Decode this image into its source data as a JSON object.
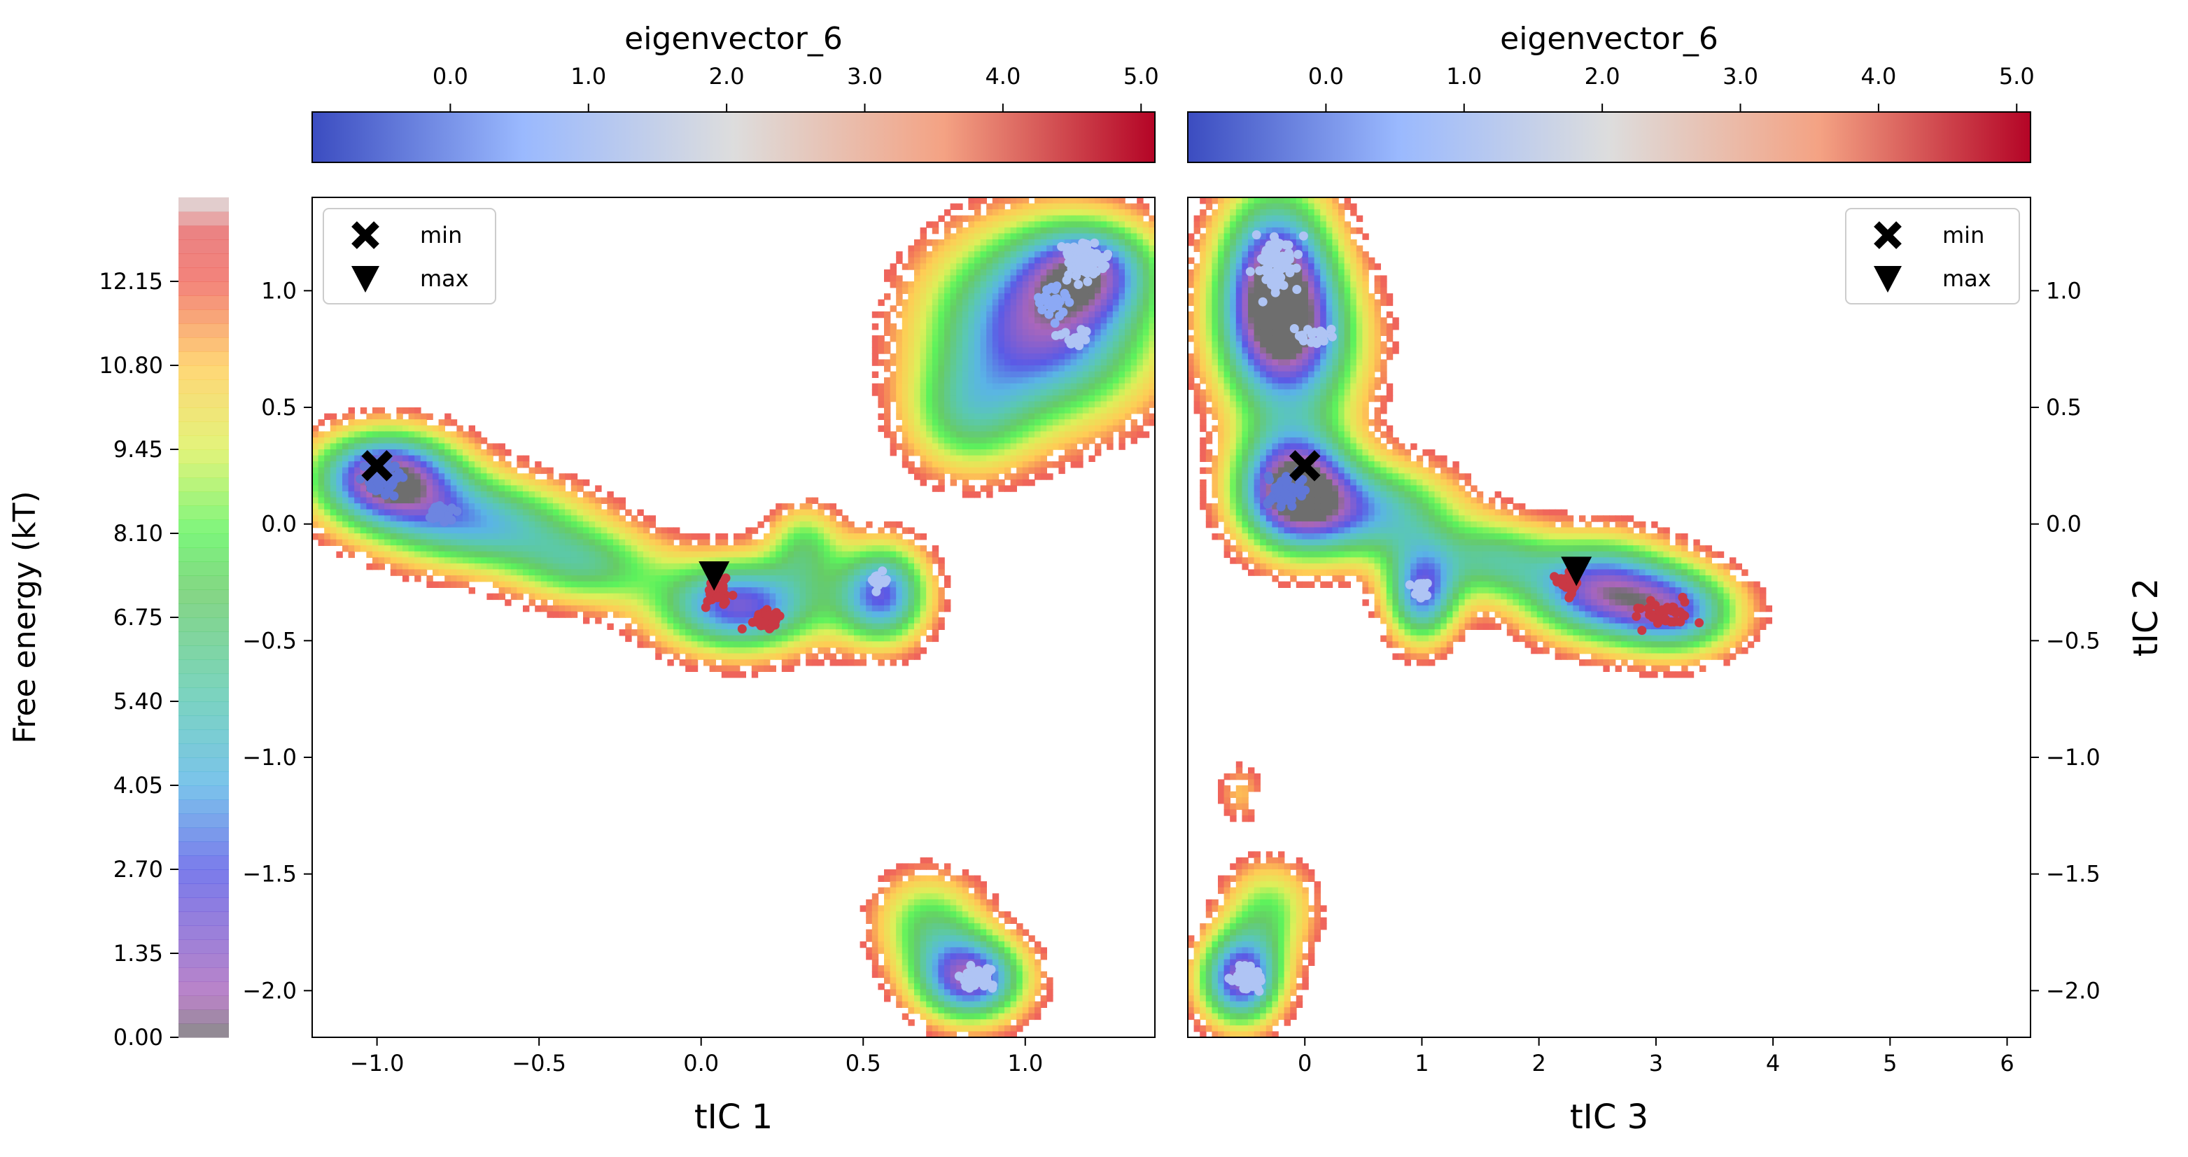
{
  "chart_data": {
    "type": "heatmap",
    "free_energy_colorbar": {
      "label": "Free energy (kT)",
      "ticks": [
        "0.00",
        "1.35",
        "2.70",
        "4.05",
        "5.40",
        "6.75",
        "8.10",
        "9.45",
        "10.80",
        "12.15"
      ],
      "range": [
        0.0,
        13.5
      ]
    },
    "eigen_colorbar": {
      "label": "eigenvector_6",
      "ticks": [
        "0.0",
        "1.0",
        "2.0",
        "3.0",
        "4.0",
        "5.0"
      ],
      "colors": [
        "#3b4cc0",
        "#dddddd",
        "#b40426"
      ]
    },
    "panels": [
      {
        "xlabel": "tIC 1",
        "ylabel": "",
        "xlim": [
          -1.2,
          1.4
        ],
        "ylim": [
          -2.2,
          1.4
        ],
        "xticks": [
          "-1.0",
          "-0.5",
          "0.0",
          "0.5",
          "1.0"
        ],
        "yticks": [
          "1.0",
          "0.5",
          "0.0",
          "-0.5",
          "-1.0",
          "-1.5",
          "-2.0"
        ],
        "legend": {
          "position": "top-left",
          "entries": [
            "min",
            "max"
          ]
        },
        "min_marker": {
          "x": -1.0,
          "y": 0.25
        },
        "max_marker": {
          "x": 0.04,
          "y": -0.22
        },
        "wells": [
          {
            "x": -0.97,
            "y": 0.2,
            "sx": 0.16,
            "sy": 0.14,
            "depth": 13.5
          },
          {
            "x": -0.68,
            "y": 0.0,
            "sx": 0.22,
            "sy": 0.14,
            "depth": 8.5
          },
          {
            "x": -0.35,
            "y": -0.18,
            "sx": 0.16,
            "sy": 0.12,
            "depth": 6.0
          },
          {
            "x": 0.12,
            "y": -0.35,
            "sx": 0.18,
            "sy": 0.14,
            "depth": 11.5
          },
          {
            "x": 0.32,
            "y": -0.08,
            "sx": 0.08,
            "sy": 0.12,
            "depth": 5.0
          },
          {
            "x": 0.56,
            "y": -0.3,
            "sx": 0.1,
            "sy": 0.15,
            "depth": 10.5
          },
          {
            "x": 0.82,
            "y": 0.45,
            "sx": 0.14,
            "sy": 0.18,
            "depth": 5.0
          },
          {
            "x": 1.05,
            "y": 0.85,
            "sx": 0.24,
            "sy": 0.28,
            "depth": 12.0
          },
          {
            "x": 1.2,
            "y": 1.1,
            "sx": 0.14,
            "sy": 0.14,
            "depth": 7.0
          },
          {
            "x": 0.7,
            "y": -1.7,
            "sx": 0.12,
            "sy": 0.15,
            "depth": 5.5
          },
          {
            "x": 0.83,
            "y": -1.95,
            "sx": 0.12,
            "sy": 0.13,
            "depth": 12.0
          }
        ],
        "clusters": [
          {
            "x": -0.98,
            "y": 0.2,
            "sx": 0.05,
            "sy": 0.07,
            "n": 60,
            "value": -0.4
          },
          {
            "x": -0.8,
            "y": 0.05,
            "sx": 0.04,
            "sy": 0.03,
            "n": 25,
            "value": -0.2
          },
          {
            "x": 0.05,
            "y": -0.3,
            "sx": 0.04,
            "sy": 0.05,
            "n": 40,
            "value": 4.6
          },
          {
            "x": 0.2,
            "y": -0.42,
            "sx": 0.04,
            "sy": 0.03,
            "n": 35,
            "value": 4.6
          },
          {
            "x": 0.55,
            "y": -0.25,
            "sx": 0.03,
            "sy": 0.04,
            "n": 20,
            "value": 1.0
          },
          {
            "x": 1.18,
            "y": 1.12,
            "sx": 0.06,
            "sy": 0.07,
            "n": 80,
            "value": 1.0
          },
          {
            "x": 1.08,
            "y": 0.95,
            "sx": 0.05,
            "sy": 0.06,
            "n": 30,
            "value": 0.3
          },
          {
            "x": 1.15,
            "y": 0.8,
            "sx": 0.04,
            "sy": 0.04,
            "n": 18,
            "value": 1.0
          },
          {
            "x": 0.85,
            "y": -1.95,
            "sx": 0.04,
            "sy": 0.04,
            "n": 55,
            "value": 1.0
          }
        ]
      },
      {
        "xlabel": "tIC 3",
        "ylabel": "tIC 2",
        "xlim": [
          -1.0,
          6.2
        ],
        "ylim": [
          -2.2,
          1.4
        ],
        "xticks": [
          "0",
          "1",
          "2",
          "3",
          "4",
          "5",
          "6"
        ],
        "yticks": [
          "1.0",
          "0.5",
          "0.0",
          "-0.5",
          "-1.0",
          "-1.5",
          "-2.0"
        ],
        "legend": {
          "position": "top-right",
          "entries": [
            "min",
            "max"
          ]
        },
        "min_marker": {
          "x": 0.0,
          "y": 0.25
        },
        "max_marker": {
          "x": 2.32,
          "y": -0.2
        },
        "wells": [
          {
            "x": -0.25,
            "y": 1.05,
            "sx": 0.35,
            "sy": 0.28,
            "depth": 12.0
          },
          {
            "x": -0.1,
            "y": 0.75,
            "sx": 0.45,
            "sy": 0.25,
            "depth": 8.0
          },
          {
            "x": -0.1,
            "y": 0.15,
            "sx": 0.35,
            "sy": 0.18,
            "depth": 13.5
          },
          {
            "x": 0.6,
            "y": 0.05,
            "sx": 0.5,
            "sy": 0.15,
            "depth": 8.0
          },
          {
            "x": 1.0,
            "y": -0.3,
            "sx": 0.22,
            "sy": 0.15,
            "depth": 10.0
          },
          {
            "x": 1.6,
            "y": -0.15,
            "sx": 0.35,
            "sy": 0.12,
            "depth": 6.0
          },
          {
            "x": 2.5,
            "y": -0.28,
            "sx": 0.45,
            "sy": 0.15,
            "depth": 11.5
          },
          {
            "x": 3.2,
            "y": -0.38,
            "sx": 0.38,
            "sy": 0.13,
            "depth": 9.0
          },
          {
            "x": -0.3,
            "y": -1.65,
            "sx": 0.28,
            "sy": 0.15,
            "depth": 5.0
          },
          {
            "x": -0.55,
            "y": -1.95,
            "sx": 0.25,
            "sy": 0.14,
            "depth": 12.0
          },
          {
            "x": -0.55,
            "y": -1.15,
            "sx": 0.15,
            "sy": 0.1,
            "depth": 2.5
          }
        ],
        "clusters": [
          {
            "x": -0.25,
            "y": 1.1,
            "sx": 0.18,
            "sy": 0.12,
            "n": 80,
            "value": 1.0
          },
          {
            "x": 0.1,
            "y": 0.8,
            "sx": 0.18,
            "sy": 0.05,
            "n": 20,
            "value": 1.0
          },
          {
            "x": -0.15,
            "y": 0.15,
            "sx": 0.14,
            "sy": 0.07,
            "n": 60,
            "value": -0.4
          },
          {
            "x": 1.0,
            "y": -0.27,
            "sx": 0.1,
            "sy": 0.05,
            "n": 20,
            "value": 1.0
          },
          {
            "x": 2.25,
            "y": -0.25,
            "sx": 0.1,
            "sy": 0.04,
            "n": 30,
            "value": 4.6
          },
          {
            "x": 3.05,
            "y": -0.38,
            "sx": 0.18,
            "sy": 0.06,
            "n": 40,
            "value": 4.6
          },
          {
            "x": -0.5,
            "y": -1.95,
            "sx": 0.1,
            "sy": 0.05,
            "n": 50,
            "value": 1.0
          }
        ]
      }
    ]
  }
}
